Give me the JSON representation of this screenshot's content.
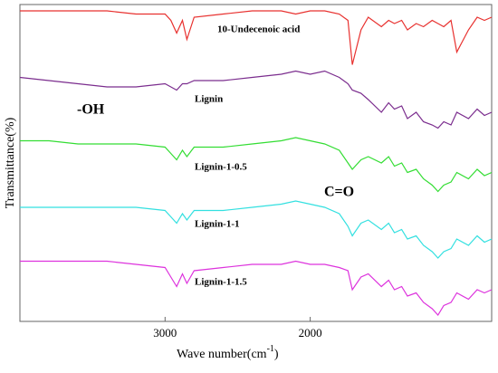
{
  "chart_data": {
    "type": "line",
    "y_label": "Transmittance(%)",
    "x_label": {
      "text": "Wave number(cm",
      "sup": "-1",
      "close": ")"
    },
    "xlim": [
      4000,
      750
    ],
    "xticks": [
      3000,
      2000
    ],
    "ylim": [
      0,
      100
    ],
    "annotations": [
      "-OH",
      "C=O"
    ],
    "x": [
      4000,
      3800,
      3600,
      3400,
      3200,
      3000,
      2960,
      2920,
      2880,
      2850,
      2800,
      2600,
      2400,
      2200,
      2100,
      2000,
      1900,
      1800,
      1740,
      1710,
      1650,
      1600,
      1510,
      1460,
      1420,
      1370,
      1330,
      1270,
      1220,
      1160,
      1120,
      1080,
      1030,
      990,
      910,
      850,
      800,
      750
    ],
    "series": [
      {
        "name": "10-Undecenoic acid",
        "color": "#e8312f",
        "values": [
          98,
          98,
          98,
          98,
          97,
          97,
          95,
          91,
          95,
          89,
          96,
          97,
          98,
          98,
          97,
          98,
          98,
          97,
          95,
          81,
          92,
          96,
          93,
          95,
          94,
          95,
          92,
          94,
          93,
          95,
          94,
          93,
          95,
          85,
          92,
          96,
          95,
          96
        ]
      },
      {
        "name": "Lignin",
        "color": "#7b2d8e",
        "values": [
          77,
          76,
          75,
          74,
          74,
          75,
          74,
          73,
          75,
          75,
          76,
          76,
          77,
          78,
          79,
          78,
          79,
          77,
          75,
          73,
          72,
          70,
          66,
          69,
          67,
          68,
          64,
          66,
          63,
          62,
          61,
          63,
          62,
          66,
          64,
          67,
          65,
          66
        ]
      },
      {
        "name": "Lignin-1-0.5",
        "color": "#33dd33",
        "values": [
          57,
          57,
          56,
          56,
          56,
          55,
          53,
          51,
          54,
          52,
          55,
          55,
          56,
          57,
          58,
          57,
          56,
          54,
          50,
          48,
          51,
          52,
          50,
          52,
          49,
          50,
          47,
          48,
          45,
          43,
          41,
          43,
          44,
          47,
          45,
          48,
          46,
          47
        ]
      },
      {
        "name": "Lignin-1-1",
        "color": "#33e0e0",
        "values": [
          36,
          36,
          36,
          36,
          36,
          35,
          33,
          31,
          34,
          32,
          35,
          35,
          36,
          37,
          38,
          37,
          36,
          34,
          30,
          27,
          31,
          32,
          29,
          31,
          28,
          29,
          26,
          27,
          24,
          22,
          20,
          22,
          23,
          26,
          24,
          27,
          25,
          26
        ]
      },
      {
        "name": "Lignin-1-1.5",
        "color": "#dd33dd",
        "values": [
          19,
          19,
          19,
          19,
          18,
          17,
          14,
          11,
          15,
          12,
          16,
          17,
          18,
          18,
          19,
          18,
          18,
          17,
          16,
          10,
          14,
          15,
          11,
          13,
          10,
          11,
          8,
          9,
          6,
          4,
          2,
          5,
          6,
          9,
          7,
          10,
          9,
          10
        ]
      }
    ]
  }
}
